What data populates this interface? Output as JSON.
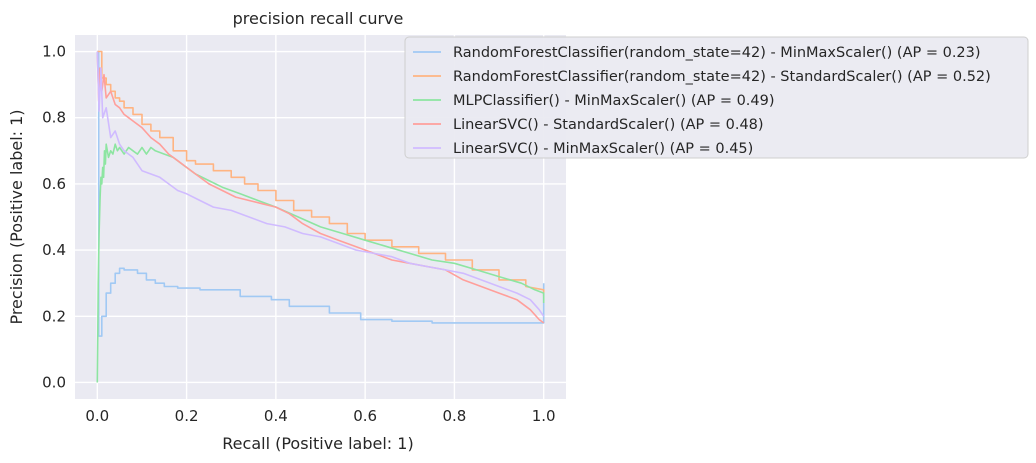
{
  "chart_data": {
    "type": "line",
    "title": "precision recall curve",
    "xlabel": "Recall (Positive label: 1)",
    "ylabel": "Precision (Positive label: 1)",
    "xlim": [
      -0.05,
      1.05
    ],
    "ylim": [
      -0.05,
      1.05
    ],
    "x_ticks": [
      "0.0",
      "0.2",
      "0.4",
      "0.6",
      "0.8",
      "1.0"
    ],
    "y_ticks": [
      "0.0",
      "0.2",
      "0.4",
      "0.6",
      "0.8",
      "1.0"
    ],
    "grid": true,
    "legend_position": "upper-right",
    "series": [
      {
        "name": "RandomForestClassifier(random_state=42) - MinMaxScaler() (AP = 0.23)",
        "color": "#a1c9f4",
        "points": [
          [
            0,
            1.0
          ],
          [
            0.003,
            1.0
          ],
          [
            0.003,
            0.14
          ],
          [
            0.01,
            0.14
          ],
          [
            0.01,
            0.2
          ],
          [
            0.02,
            0.2
          ],
          [
            0.02,
            0.27
          ],
          [
            0.03,
            0.27
          ],
          [
            0.03,
            0.3
          ],
          [
            0.04,
            0.3
          ],
          [
            0.04,
            0.33
          ],
          [
            0.05,
            0.33
          ],
          [
            0.05,
            0.345
          ],
          [
            0.06,
            0.345
          ],
          [
            0.06,
            0.34
          ],
          [
            0.09,
            0.34
          ],
          [
            0.09,
            0.33
          ],
          [
            0.11,
            0.33
          ],
          [
            0.11,
            0.31
          ],
          [
            0.13,
            0.31
          ],
          [
            0.13,
            0.3
          ],
          [
            0.15,
            0.3
          ],
          [
            0.15,
            0.29
          ],
          [
            0.18,
            0.29
          ],
          [
            0.18,
            0.285
          ],
          [
            0.23,
            0.285
          ],
          [
            0.23,
            0.28
          ],
          [
            0.32,
            0.28
          ],
          [
            0.32,
            0.26
          ],
          [
            0.39,
            0.26
          ],
          [
            0.39,
            0.25
          ],
          [
            0.43,
            0.25
          ],
          [
            0.43,
            0.23
          ],
          [
            0.52,
            0.23
          ],
          [
            0.52,
            0.21
          ],
          [
            0.59,
            0.21
          ],
          [
            0.59,
            0.19
          ],
          [
            0.66,
            0.19
          ],
          [
            0.66,
            0.185
          ],
          [
            0.75,
            0.185
          ],
          [
            0.75,
            0.18
          ],
          [
            1.0,
            0.18
          ],
          [
            1.0,
            0.3
          ]
        ]
      },
      {
        "name": "RandomForestClassifier(random_state=42) - StandardScaler() (AP = 0.52)",
        "color": "#ffb482",
        "points": [
          [
            0,
            1.0
          ],
          [
            0.01,
            1.0
          ],
          [
            0.01,
            0.92
          ],
          [
            0.02,
            0.92
          ],
          [
            0.02,
            0.9
          ],
          [
            0.03,
            0.9
          ],
          [
            0.03,
            0.88
          ],
          [
            0.04,
            0.88
          ],
          [
            0.04,
            0.86
          ],
          [
            0.05,
            0.86
          ],
          [
            0.05,
            0.85
          ],
          [
            0.06,
            0.85
          ],
          [
            0.06,
            0.83
          ],
          [
            0.08,
            0.83
          ],
          [
            0.08,
            0.81
          ],
          [
            0.1,
            0.81
          ],
          [
            0.1,
            0.78
          ],
          [
            0.12,
            0.78
          ],
          [
            0.12,
            0.76
          ],
          [
            0.14,
            0.76
          ],
          [
            0.14,
            0.74
          ],
          [
            0.17,
            0.74
          ],
          [
            0.17,
            0.7
          ],
          [
            0.2,
            0.7
          ],
          [
            0.2,
            0.67
          ],
          [
            0.22,
            0.67
          ],
          [
            0.22,
            0.66
          ],
          [
            0.26,
            0.66
          ],
          [
            0.26,
            0.64
          ],
          [
            0.3,
            0.64
          ],
          [
            0.3,
            0.62
          ],
          [
            0.33,
            0.62
          ],
          [
            0.33,
            0.6
          ],
          [
            0.36,
            0.6
          ],
          [
            0.36,
            0.58
          ],
          [
            0.4,
            0.58
          ],
          [
            0.4,
            0.55
          ],
          [
            0.44,
            0.55
          ],
          [
            0.44,
            0.52
          ],
          [
            0.48,
            0.52
          ],
          [
            0.48,
            0.5
          ],
          [
            0.52,
            0.5
          ],
          [
            0.52,
            0.48
          ],
          [
            0.56,
            0.48
          ],
          [
            0.56,
            0.45
          ],
          [
            0.6,
            0.45
          ],
          [
            0.6,
            0.43
          ],
          [
            0.66,
            0.43
          ],
          [
            0.66,
            0.41
          ],
          [
            0.72,
            0.41
          ],
          [
            0.72,
            0.39
          ],
          [
            0.78,
            0.39
          ],
          [
            0.78,
            0.37
          ],
          [
            0.84,
            0.37
          ],
          [
            0.84,
            0.34
          ],
          [
            0.9,
            0.34
          ],
          [
            0.9,
            0.31
          ],
          [
            0.96,
            0.31
          ],
          [
            0.96,
            0.29
          ],
          [
            1.0,
            0.28
          ],
          [
            1.0,
            0.26
          ]
        ]
      },
      {
        "name": "MLPClassifier() - MinMaxScaler() (AP = 0.49)",
        "color": "#8de5a1",
        "points": [
          [
            0,
            0.0
          ],
          [
            0.001,
            0.15
          ],
          [
            0.002,
            0.3
          ],
          [
            0.004,
            0.45
          ],
          [
            0.006,
            0.55
          ],
          [
            0.008,
            0.62
          ],
          [
            0.01,
            0.6
          ],
          [
            0.012,
            0.65
          ],
          [
            0.014,
            0.62
          ],
          [
            0.016,
            0.7
          ],
          [
            0.018,
            0.66
          ],
          [
            0.02,
            0.72
          ],
          [
            0.025,
            0.68
          ],
          [
            0.03,
            0.7
          ],
          [
            0.035,
            0.69
          ],
          [
            0.04,
            0.72
          ],
          [
            0.045,
            0.7
          ],
          [
            0.05,
            0.71
          ],
          [
            0.06,
            0.69
          ],
          [
            0.07,
            0.71
          ],
          [
            0.08,
            0.7
          ],
          [
            0.09,
            0.69
          ],
          [
            0.1,
            0.71
          ],
          [
            0.11,
            0.69
          ],
          [
            0.12,
            0.71
          ],
          [
            0.13,
            0.7
          ],
          [
            0.15,
            0.69
          ],
          [
            0.17,
            0.68
          ],
          [
            0.19,
            0.66
          ],
          [
            0.22,
            0.63
          ],
          [
            0.25,
            0.61
          ],
          [
            0.28,
            0.59
          ],
          [
            0.32,
            0.57
          ],
          [
            0.36,
            0.55
          ],
          [
            0.4,
            0.53
          ],
          [
            0.45,
            0.5
          ],
          [
            0.5,
            0.47
          ],
          [
            0.55,
            0.45
          ],
          [
            0.6,
            0.43
          ],
          [
            0.65,
            0.41
          ],
          [
            0.7,
            0.39
          ],
          [
            0.75,
            0.37
          ],
          [
            0.8,
            0.36
          ],
          [
            0.85,
            0.34
          ],
          [
            0.9,
            0.32
          ],
          [
            0.95,
            0.3
          ],
          [
            0.98,
            0.28
          ],
          [
            1.0,
            0.27
          ],
          [
            1.0,
            0.24
          ]
        ]
      },
      {
        "name": "LinearSVC() - StandardScaler() (AP = 0.48)",
        "color": "#ff9f9b",
        "points": [
          [
            0,
            1.0
          ],
          [
            0.003,
            0.85
          ],
          [
            0.006,
            0.95
          ],
          [
            0.01,
            0.88
          ],
          [
            0.015,
            0.93
          ],
          [
            0.02,
            0.86
          ],
          [
            0.03,
            0.88
          ],
          [
            0.04,
            0.84
          ],
          [
            0.05,
            0.83
          ],
          [
            0.06,
            0.81
          ],
          [
            0.07,
            0.8
          ],
          [
            0.08,
            0.79
          ],
          [
            0.1,
            0.77
          ],
          [
            0.12,
            0.74
          ],
          [
            0.14,
            0.72
          ],
          [
            0.16,
            0.69
          ],
          [
            0.18,
            0.67
          ],
          [
            0.2,
            0.65
          ],
          [
            0.22,
            0.63
          ],
          [
            0.25,
            0.6
          ],
          [
            0.28,
            0.58
          ],
          [
            0.31,
            0.56
          ],
          [
            0.34,
            0.55
          ],
          [
            0.37,
            0.54
          ],
          [
            0.4,
            0.53
          ],
          [
            0.43,
            0.51
          ],
          [
            0.46,
            0.48
          ],
          [
            0.5,
            0.45
          ],
          [
            0.54,
            0.43
          ],
          [
            0.58,
            0.41
          ],
          [
            0.62,
            0.39
          ],
          [
            0.66,
            0.37
          ],
          [
            0.7,
            0.36
          ],
          [
            0.74,
            0.35
          ],
          [
            0.78,
            0.34
          ],
          [
            0.82,
            0.31
          ],
          [
            0.86,
            0.29
          ],
          [
            0.9,
            0.27
          ],
          [
            0.94,
            0.25
          ],
          [
            0.97,
            0.22
          ],
          [
            0.99,
            0.19
          ],
          [
            1.0,
            0.18
          ]
        ]
      },
      {
        "name": "LinearSVC() - MinMaxScaler() (AP = 0.45)",
        "color": "#d0bbff",
        "points": [
          [
            0,
            1.0
          ],
          [
            0.004,
            0.82
          ],
          [
            0.008,
            0.95
          ],
          [
            0.012,
            0.8
          ],
          [
            0.02,
            0.83
          ],
          [
            0.03,
            0.74
          ],
          [
            0.04,
            0.76
          ],
          [
            0.05,
            0.72
          ],
          [
            0.06,
            0.7
          ],
          [
            0.07,
            0.69
          ],
          [
            0.08,
            0.68
          ],
          [
            0.09,
            0.66
          ],
          [
            0.1,
            0.64
          ],
          [
            0.12,
            0.63
          ],
          [
            0.14,
            0.62
          ],
          [
            0.16,
            0.6
          ],
          [
            0.18,
            0.58
          ],
          [
            0.2,
            0.57
          ],
          [
            0.23,
            0.55
          ],
          [
            0.26,
            0.53
          ],
          [
            0.3,
            0.52
          ],
          [
            0.34,
            0.5
          ],
          [
            0.38,
            0.48
          ],
          [
            0.42,
            0.47
          ],
          [
            0.46,
            0.45
          ],
          [
            0.5,
            0.44
          ],
          [
            0.54,
            0.42
          ],
          [
            0.58,
            0.4
          ],
          [
            0.62,
            0.39
          ],
          [
            0.66,
            0.38
          ],
          [
            0.7,
            0.36
          ],
          [
            0.74,
            0.35
          ],
          [
            0.78,
            0.34
          ],
          [
            0.82,
            0.33
          ],
          [
            0.86,
            0.31
          ],
          [
            0.9,
            0.29
          ],
          [
            0.94,
            0.27
          ],
          [
            0.97,
            0.25
          ],
          [
            0.99,
            0.22
          ],
          [
            1.0,
            0.2
          ]
        ]
      }
    ]
  }
}
